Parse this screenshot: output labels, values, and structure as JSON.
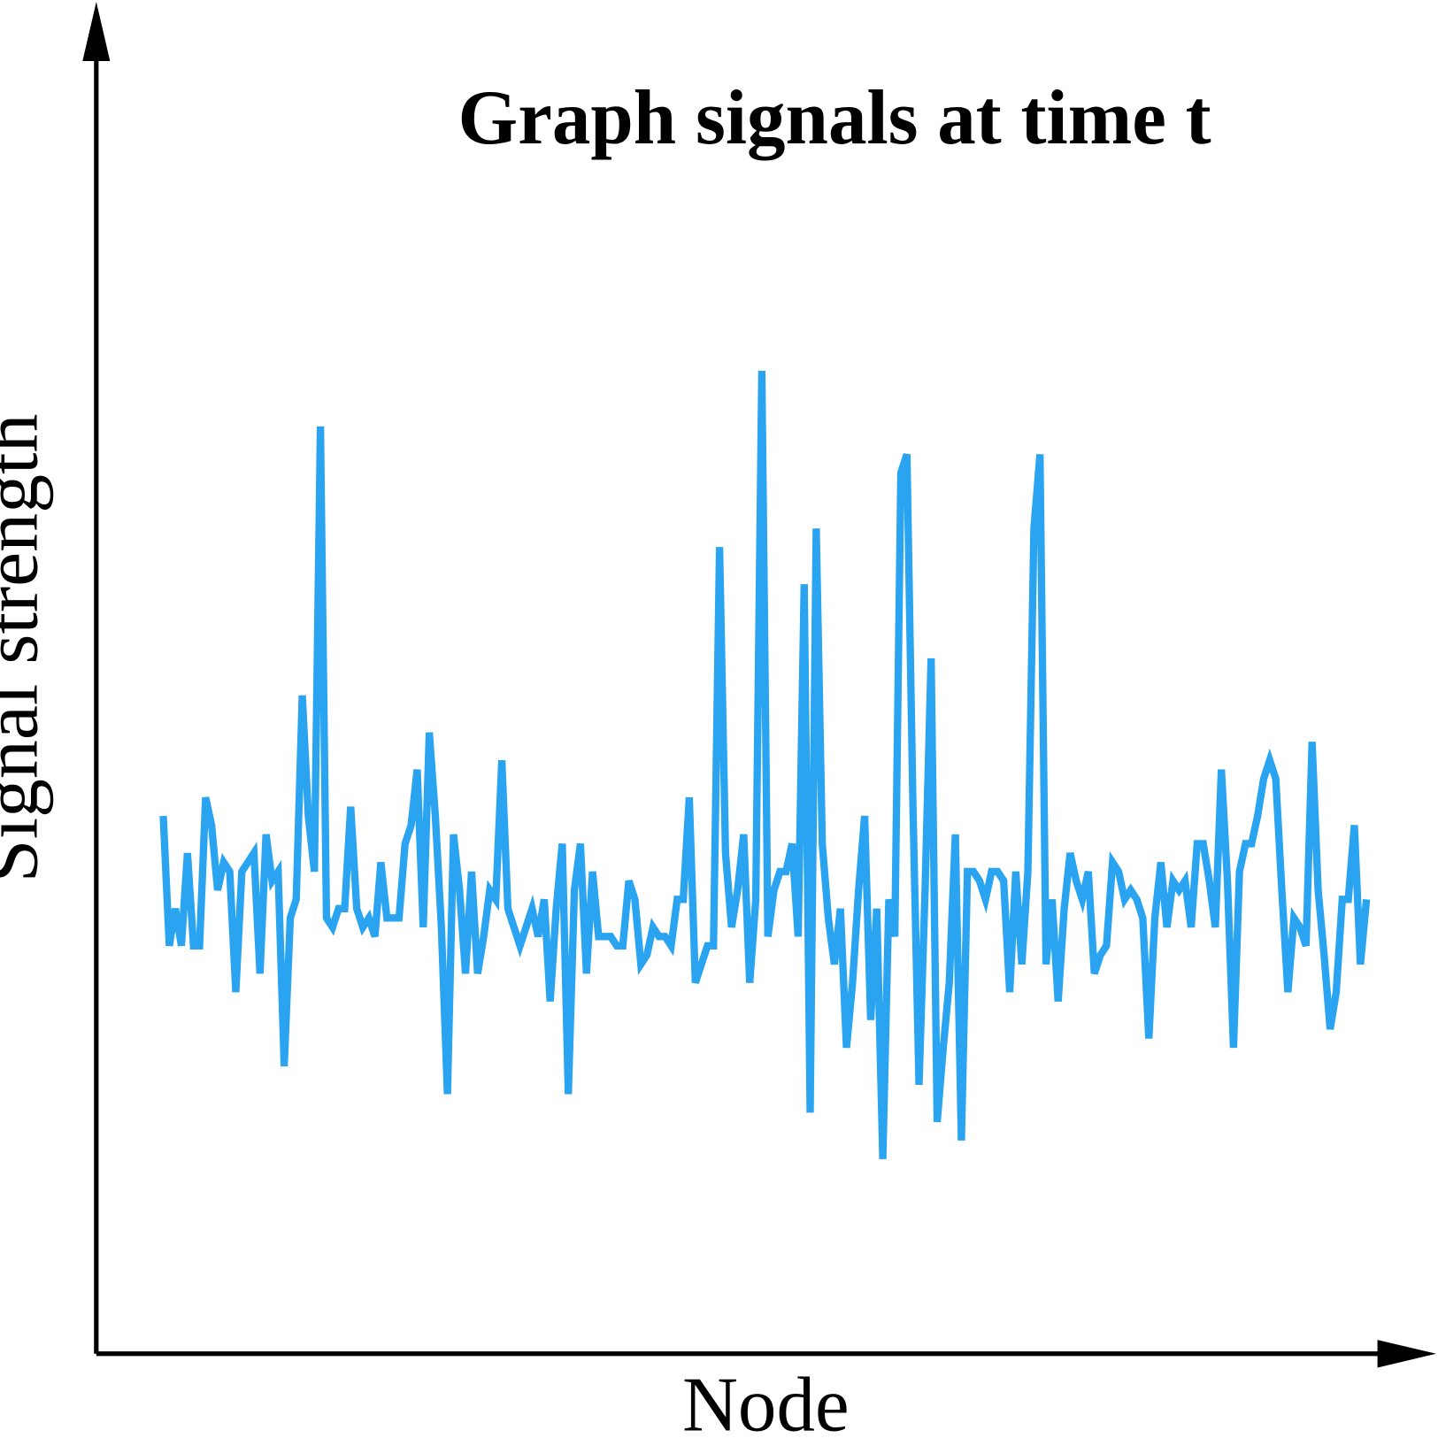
{
  "chart_data": {
    "type": "line",
    "title": "Graph signals at time t",
    "x_label": "Node",
    "y_label": "Signal strength",
    "ylim": [
      0,
      145
    ],
    "series": [
      {
        "color": "#2aa4f0",
        "values": [
          58,
          44,
          48,
          44,
          54,
          44,
          44,
          60,
          57,
          50,
          53,
          52,
          39,
          52,
          53,
          54,
          41,
          56,
          51,
          52,
          31,
          47,
          49,
          71,
          58,
          52,
          100,
          47,
          46,
          48,
          48,
          59,
          48,
          46,
          47,
          45,
          53,
          47,
          47,
          47,
          55,
          57,
          63,
          46,
          67,
          58,
          46,
          28,
          56,
          50,
          41,
          52,
          41,
          45,
          50,
          49,
          64,
          48,
          46,
          44,
          46,
          48,
          45,
          49,
          38,
          48,
          55,
          28,
          50,
          55,
          41,
          52,
          45,
          45,
          45,
          44,
          44,
          51,
          49,
          42,
          43,
          46,
          45,
          45,
          44,
          49,
          49,
          60,
          40,
          42,
          44,
          44,
          87,
          54,
          46,
          50,
          56,
          40,
          49,
          106,
          45,
          50,
          52,
          52,
          55,
          45,
          83,
          26,
          89,
          55,
          47,
          42,
          48,
          33,
          40,
          50,
          58,
          36,
          48,
          21,
          49,
          45,
          95,
          97,
          59,
          29,
          50,
          75,
          25,
          33,
          40,
          56,
          23,
          52,
          52,
          51,
          49,
          52,
          52,
          51,
          39,
          52,
          42,
          52,
          89,
          97,
          42,
          49,
          38,
          48,
          54,
          51,
          49,
          52,
          41,
          43,
          44,
          53,
          52,
          49,
          50,
          49,
          47,
          34,
          47,
          53,
          46,
          51,
          50,
          51,
          46,
          55,
          55,
          51,
          46,
          63,
          51,
          33,
          52,
          55,
          55,
          58,
          62,
          64,
          62,
          50,
          39,
          47,
          46,
          44,
          66,
          50,
          43,
          35,
          39,
          49,
          49,
          57,
          42,
          49
        ]
      }
    ]
  }
}
